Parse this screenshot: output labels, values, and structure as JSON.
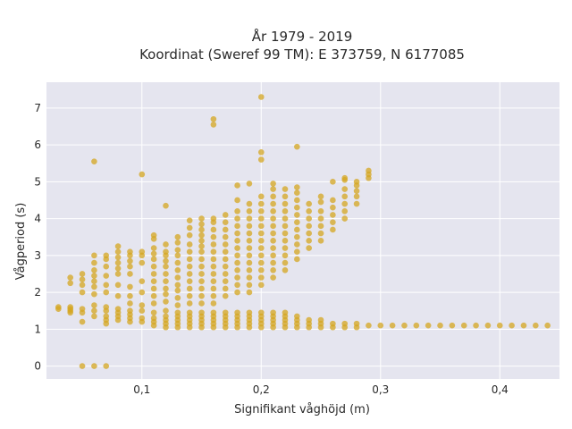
{
  "chart_data": {
    "type": "scatter",
    "title": [
      "År 1979 - 2019",
      "Koordinat (Sweref 99 TM): E 373759, N 6177085"
    ],
    "xlabel": "Signifikant våghöjd (m)",
    "ylabel": "Vågperiod (s)",
    "xlim": [
      0.02,
      0.45
    ],
    "ylim": [
      -0.35,
      7.7
    ],
    "xticks": [
      0.1,
      0.2,
      0.3,
      0.4
    ],
    "xtick_labels": [
      "0,1",
      "0,2",
      "0,3",
      "0,4"
    ],
    "yticks": [
      0,
      1,
      2,
      3,
      4,
      5,
      6,
      7
    ],
    "ytick_labels": [
      "0",
      "1",
      "2",
      "3",
      "4",
      "5",
      "6",
      "7"
    ],
    "grid": true,
    "colors": {
      "background": "#e5e5ef",
      "marker": "#d4a520"
    },
    "points": [
      [
        0.03,
        1.6
      ],
      [
        0.03,
        1.55
      ],
      [
        0.04,
        1.55
      ],
      [
        0.04,
        1.5
      ],
      [
        0.04,
        1.45
      ],
      [
        0.04,
        1.6
      ],
      [
        0.04,
        2.25
      ],
      [
        0.04,
        2.4
      ],
      [
        0.05,
        1.45
      ],
      [
        0.05,
        1.55
      ],
      [
        0.05,
        1.2
      ],
      [
        0.05,
        2.0
      ],
      [
        0.05,
        2.2
      ],
      [
        0.05,
        2.35
      ],
      [
        0.05,
        2.5
      ],
      [
        0.05,
        0.0
      ],
      [
        0.06,
        0.0
      ],
      [
        0.07,
        0.0
      ],
      [
        0.06,
        1.35
      ],
      [
        0.06,
        1.5
      ],
      [
        0.06,
        1.65
      ],
      [
        0.06,
        1.95
      ],
      [
        0.06,
        2.15
      ],
      [
        0.06,
        2.3
      ],
      [
        0.06,
        2.45
      ],
      [
        0.06,
        2.6
      ],
      [
        0.06,
        2.8
      ],
      [
        0.06,
        3.0
      ],
      [
        0.06,
        5.55
      ],
      [
        0.07,
        1.15
      ],
      [
        0.07,
        1.25
      ],
      [
        0.07,
        1.35
      ],
      [
        0.07,
        1.5
      ],
      [
        0.07,
        1.6
      ],
      [
        0.07,
        2.0
      ],
      [
        0.07,
        2.2
      ],
      [
        0.07,
        2.45
      ],
      [
        0.07,
        2.7
      ],
      [
        0.07,
        2.9
      ],
      [
        0.07,
        3.0
      ],
      [
        0.08,
        1.25
      ],
      [
        0.08,
        1.35
      ],
      [
        0.08,
        1.45
      ],
      [
        0.08,
        1.55
      ],
      [
        0.08,
        1.9
      ],
      [
        0.08,
        2.2
      ],
      [
        0.08,
        2.5
      ],
      [
        0.08,
        2.65
      ],
      [
        0.08,
        2.8
      ],
      [
        0.08,
        2.95
      ],
      [
        0.08,
        3.1
      ],
      [
        0.08,
        3.25
      ],
      [
        0.09,
        1.2
      ],
      [
        0.09,
        1.3
      ],
      [
        0.09,
        1.4
      ],
      [
        0.09,
        1.5
      ],
      [
        0.09,
        1.7
      ],
      [
        0.09,
        1.9
      ],
      [
        0.09,
        2.15
      ],
      [
        0.09,
        2.5
      ],
      [
        0.09,
        2.7
      ],
      [
        0.09,
        2.85
      ],
      [
        0.09,
        3.0
      ],
      [
        0.09,
        3.1
      ],
      [
        0.1,
        1.2
      ],
      [
        0.1,
        1.3
      ],
      [
        0.1,
        1.5
      ],
      [
        0.1,
        1.65
      ],
      [
        0.1,
        2.0
      ],
      [
        0.1,
        2.3
      ],
      [
        0.1,
        2.8
      ],
      [
        0.1,
        3.0
      ],
      [
        0.1,
        3.1
      ],
      [
        0.1,
        5.2
      ],
      [
        0.11,
        1.1
      ],
      [
        0.11,
        1.2
      ],
      [
        0.11,
        1.3
      ],
      [
        0.11,
        1.45
      ],
      [
        0.11,
        1.7
      ],
      [
        0.11,
        1.9
      ],
      [
        0.11,
        2.1
      ],
      [
        0.11,
        2.3
      ],
      [
        0.11,
        2.5
      ],
      [
        0.11,
        2.7
      ],
      [
        0.11,
        2.9
      ],
      [
        0.11,
        3.05
      ],
      [
        0.11,
        3.2
      ],
      [
        0.11,
        3.45
      ],
      [
        0.11,
        3.55
      ],
      [
        0.12,
        1.05
      ],
      [
        0.12,
        1.15
      ],
      [
        0.12,
        1.25
      ],
      [
        0.12,
        1.35
      ],
      [
        0.12,
        1.5
      ],
      [
        0.12,
        1.75
      ],
      [
        0.12,
        1.95
      ],
      [
        0.12,
        2.1
      ],
      [
        0.12,
        2.3
      ],
      [
        0.12,
        2.5
      ],
      [
        0.12,
        2.7
      ],
      [
        0.12,
        2.85
      ],
      [
        0.12,
        3.0
      ],
      [
        0.12,
        3.1
      ],
      [
        0.12,
        3.3
      ],
      [
        0.12,
        4.35
      ],
      [
        0.13,
        1.05
      ],
      [
        0.13,
        1.15
      ],
      [
        0.13,
        1.25
      ],
      [
        0.13,
        1.35
      ],
      [
        0.13,
        1.45
      ],
      [
        0.13,
        1.65
      ],
      [
        0.13,
        1.85
      ],
      [
        0.13,
        2.05
      ],
      [
        0.13,
        2.2
      ],
      [
        0.13,
        2.4
      ],
      [
        0.13,
        2.6
      ],
      [
        0.13,
        2.8
      ],
      [
        0.13,
        3.0
      ],
      [
        0.13,
        3.15
      ],
      [
        0.13,
        3.35
      ],
      [
        0.13,
        3.5
      ],
      [
        0.14,
        1.05
      ],
      [
        0.14,
        1.15
      ],
      [
        0.14,
        1.25
      ],
      [
        0.14,
        1.35
      ],
      [
        0.14,
        1.45
      ],
      [
        0.14,
        1.7
      ],
      [
        0.14,
        1.9
      ],
      [
        0.14,
        2.1
      ],
      [
        0.14,
        2.3
      ],
      [
        0.14,
        2.5
      ],
      [
        0.14,
        2.7
      ],
      [
        0.14,
        2.9
      ],
      [
        0.14,
        3.1
      ],
      [
        0.14,
        3.3
      ],
      [
        0.14,
        3.55
      ],
      [
        0.14,
        3.75
      ],
      [
        0.14,
        3.95
      ],
      [
        0.15,
        1.05
      ],
      [
        0.15,
        1.15
      ],
      [
        0.15,
        1.25
      ],
      [
        0.15,
        1.35
      ],
      [
        0.15,
        1.45
      ],
      [
        0.15,
        1.7
      ],
      [
        0.15,
        1.9
      ],
      [
        0.15,
        2.1
      ],
      [
        0.15,
        2.3
      ],
      [
        0.15,
        2.5
      ],
      [
        0.15,
        2.7
      ],
      [
        0.15,
        2.9
      ],
      [
        0.15,
        3.1
      ],
      [
        0.15,
        3.25
      ],
      [
        0.15,
        3.4
      ],
      [
        0.15,
        3.55
      ],
      [
        0.15,
        3.7
      ],
      [
        0.15,
        3.85
      ],
      [
        0.15,
        4.0
      ],
      [
        0.16,
        1.05
      ],
      [
        0.16,
        1.15
      ],
      [
        0.16,
        1.25
      ],
      [
        0.16,
        1.35
      ],
      [
        0.16,
        1.45
      ],
      [
        0.16,
        1.7
      ],
      [
        0.16,
        1.9
      ],
      [
        0.16,
        2.1
      ],
      [
        0.16,
        2.3
      ],
      [
        0.16,
        2.5
      ],
      [
        0.16,
        2.7
      ],
      [
        0.16,
        2.9
      ],
      [
        0.16,
        3.1
      ],
      [
        0.16,
        3.3
      ],
      [
        0.16,
        3.5
      ],
      [
        0.16,
        3.7
      ],
      [
        0.16,
        3.9
      ],
      [
        0.16,
        4.0
      ],
      [
        0.16,
        6.55
      ],
      [
        0.16,
        6.7
      ],
      [
        0.17,
        1.05
      ],
      [
        0.17,
        1.15
      ],
      [
        0.17,
        1.25
      ],
      [
        0.17,
        1.35
      ],
      [
        0.17,
        1.45
      ],
      [
        0.17,
        1.9
      ],
      [
        0.17,
        2.1
      ],
      [
        0.17,
        2.3
      ],
      [
        0.17,
        2.5
      ],
      [
        0.17,
        2.7
      ],
      [
        0.17,
        2.9
      ],
      [
        0.17,
        3.1
      ],
      [
        0.17,
        3.3
      ],
      [
        0.17,
        3.5
      ],
      [
        0.17,
        3.7
      ],
      [
        0.17,
        3.9
      ],
      [
        0.17,
        4.1
      ],
      [
        0.18,
        1.05
      ],
      [
        0.18,
        1.15
      ],
      [
        0.18,
        1.25
      ],
      [
        0.18,
        1.35
      ],
      [
        0.18,
        1.45
      ],
      [
        0.18,
        2.0
      ],
      [
        0.18,
        2.2
      ],
      [
        0.18,
        2.4
      ],
      [
        0.18,
        2.6
      ],
      [
        0.18,
        2.8
      ],
      [
        0.18,
        3.0
      ],
      [
        0.18,
        3.2
      ],
      [
        0.18,
        3.4
      ],
      [
        0.18,
        3.6
      ],
      [
        0.18,
        3.8
      ],
      [
        0.18,
        4.0
      ],
      [
        0.18,
        4.2
      ],
      [
        0.18,
        4.5
      ],
      [
        0.18,
        4.9
      ],
      [
        0.19,
        1.05
      ],
      [
        0.19,
        1.15
      ],
      [
        0.19,
        1.25
      ],
      [
        0.19,
        1.35
      ],
      [
        0.19,
        1.45
      ],
      [
        0.19,
        2.0
      ],
      [
        0.19,
        2.2
      ],
      [
        0.19,
        2.4
      ],
      [
        0.19,
        2.6
      ],
      [
        0.19,
        2.8
      ],
      [
        0.19,
        3.0
      ],
      [
        0.19,
        3.2
      ],
      [
        0.19,
        3.4
      ],
      [
        0.19,
        3.6
      ],
      [
        0.19,
        3.8
      ],
      [
        0.19,
        4.0
      ],
      [
        0.19,
        4.2
      ],
      [
        0.19,
        4.4
      ],
      [
        0.19,
        4.95
      ],
      [
        0.2,
        1.05
      ],
      [
        0.2,
        1.15
      ],
      [
        0.2,
        1.25
      ],
      [
        0.2,
        1.35
      ],
      [
        0.2,
        1.45
      ],
      [
        0.2,
        2.2
      ],
      [
        0.2,
        2.4
      ],
      [
        0.2,
        2.6
      ],
      [
        0.2,
        2.8
      ],
      [
        0.2,
        3.0
      ],
      [
        0.2,
        3.2
      ],
      [
        0.2,
        3.4
      ],
      [
        0.2,
        3.6
      ],
      [
        0.2,
        3.8
      ],
      [
        0.2,
        4.0
      ],
      [
        0.2,
        4.2
      ],
      [
        0.2,
        4.4
      ],
      [
        0.2,
        4.6
      ],
      [
        0.2,
        5.6
      ],
      [
        0.2,
        5.8
      ],
      [
        0.2,
        7.3
      ],
      [
        0.21,
        1.05
      ],
      [
        0.21,
        1.15
      ],
      [
        0.21,
        1.25
      ],
      [
        0.21,
        1.35
      ],
      [
        0.21,
        1.45
      ],
      [
        0.21,
        2.4
      ],
      [
        0.21,
        2.6
      ],
      [
        0.21,
        2.8
      ],
      [
        0.21,
        3.0
      ],
      [
        0.21,
        3.2
      ],
      [
        0.21,
        3.4
      ],
      [
        0.21,
        3.6
      ],
      [
        0.21,
        3.8
      ],
      [
        0.21,
        4.0
      ],
      [
        0.21,
        4.2
      ],
      [
        0.21,
        4.4
      ],
      [
        0.21,
        4.6
      ],
      [
        0.21,
        4.8
      ],
      [
        0.21,
        4.95
      ],
      [
        0.22,
        1.05
      ],
      [
        0.22,
        1.15
      ],
      [
        0.22,
        1.25
      ],
      [
        0.22,
        1.35
      ],
      [
        0.22,
        1.45
      ],
      [
        0.22,
        2.6
      ],
      [
        0.22,
        2.8
      ],
      [
        0.22,
        3.0
      ],
      [
        0.22,
        3.2
      ],
      [
        0.22,
        3.4
      ],
      [
        0.22,
        3.6
      ],
      [
        0.22,
        3.8
      ],
      [
        0.22,
        4.0
      ],
      [
        0.22,
        4.2
      ],
      [
        0.22,
        4.4
      ],
      [
        0.22,
        4.6
      ],
      [
        0.22,
        4.8
      ],
      [
        0.23,
        1.05
      ],
      [
        0.23,
        1.15
      ],
      [
        0.23,
        1.25
      ],
      [
        0.23,
        1.35
      ],
      [
        0.23,
        2.9
      ],
      [
        0.23,
        3.1
      ],
      [
        0.23,
        3.3
      ],
      [
        0.23,
        3.5
      ],
      [
        0.23,
        3.7
      ],
      [
        0.23,
        3.9
      ],
      [
        0.23,
        4.1
      ],
      [
        0.23,
        4.3
      ],
      [
        0.23,
        4.5
      ],
      [
        0.23,
        4.7
      ],
      [
        0.23,
        4.85
      ],
      [
        0.23,
        5.95
      ],
      [
        0.24,
        1.05
      ],
      [
        0.24,
        1.15
      ],
      [
        0.24,
        1.25
      ],
      [
        0.24,
        3.2
      ],
      [
        0.24,
        3.4
      ],
      [
        0.24,
        3.6
      ],
      [
        0.24,
        3.8
      ],
      [
        0.24,
        4.0
      ],
      [
        0.24,
        4.2
      ],
      [
        0.24,
        4.4
      ],
      [
        0.25,
        1.05
      ],
      [
        0.25,
        1.15
      ],
      [
        0.25,
        1.25
      ],
      [
        0.25,
        3.4
      ],
      [
        0.25,
        3.6
      ],
      [
        0.25,
        3.8
      ],
      [
        0.25,
        4.0
      ],
      [
        0.25,
        4.2
      ],
      [
        0.25,
        4.45
      ],
      [
        0.25,
        4.6
      ],
      [
        0.26,
        1.05
      ],
      [
        0.26,
        1.15
      ],
      [
        0.26,
        3.7
      ],
      [
        0.26,
        3.9
      ],
      [
        0.26,
        4.1
      ],
      [
        0.26,
        4.3
      ],
      [
        0.26,
        4.5
      ],
      [
        0.26,
        5.0
      ],
      [
        0.27,
        1.05
      ],
      [
        0.27,
        1.15
      ],
      [
        0.27,
        4.0
      ],
      [
        0.27,
        4.2
      ],
      [
        0.27,
        4.4
      ],
      [
        0.27,
        4.6
      ],
      [
        0.27,
        4.8
      ],
      [
        0.27,
        5.05
      ],
      [
        0.27,
        5.1
      ],
      [
        0.28,
        1.05
      ],
      [
        0.28,
        1.15
      ],
      [
        0.28,
        4.4
      ],
      [
        0.28,
        4.6
      ],
      [
        0.28,
        4.75
      ],
      [
        0.28,
        4.9
      ],
      [
        0.28,
        5.0
      ],
      [
        0.29,
        1.1
      ],
      [
        0.29,
        5.1
      ],
      [
        0.29,
        5.2
      ],
      [
        0.29,
        5.3
      ],
      [
        0.3,
        1.1
      ],
      [
        0.31,
        1.1
      ],
      [
        0.32,
        1.1
      ],
      [
        0.33,
        1.1
      ],
      [
        0.34,
        1.1
      ],
      [
        0.35,
        1.1
      ],
      [
        0.36,
        1.1
      ],
      [
        0.37,
        1.1
      ],
      [
        0.38,
        1.1
      ],
      [
        0.39,
        1.1
      ],
      [
        0.4,
        1.1
      ],
      [
        0.41,
        1.1
      ],
      [
        0.42,
        1.1
      ],
      [
        0.43,
        1.1
      ],
      [
        0.44,
        1.1
      ]
    ]
  }
}
